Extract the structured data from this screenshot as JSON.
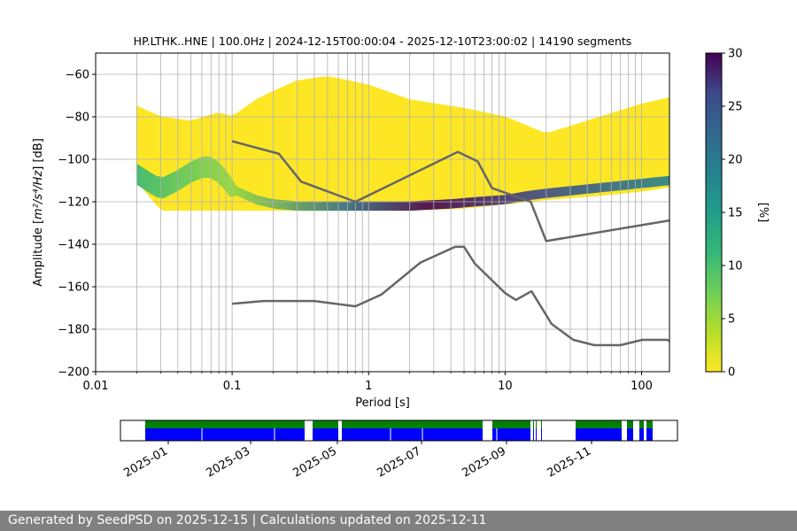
{
  "chart_data": {
    "type": "heatmap",
    "title": "HP.LTHK..HNE | 100.0Hz | 2024-12-15T00:00:04 - 2025-12-10T23:00:02 | 14190 segments",
    "xlabel": "Period [s]",
    "ylabel_prefix": "Amplitude [",
    "ylabel_math": "m²/s⁴/Hz",
    "ylabel_suffix": "] [dB]",
    "x_scale": "log",
    "xlim": [
      0.01,
      160
    ],
    "ylim": [
      -200,
      -50
    ],
    "grid": true,
    "x_ticks": [
      {
        "value": 0.01,
        "label": "0.01"
      },
      {
        "value": 0.1,
        "label": "0.1"
      },
      {
        "value": 1,
        "label": "1"
      },
      {
        "value": 10,
        "label": "10"
      },
      {
        "value": 100,
        "label": "100"
      }
    ],
    "y_ticks": [
      {
        "value": -60,
        "label": "−60"
      },
      {
        "value": -80,
        "label": "−80"
      },
      {
        "value": -100,
        "label": "−100"
      },
      {
        "value": -120,
        "label": "−120"
      },
      {
        "value": -140,
        "label": "−140"
      },
      {
        "value": -160,
        "label": "−160"
      },
      {
        "value": -180,
        "label": "−180"
      },
      {
        "value": -200,
        "label": "−200"
      }
    ],
    "colorbar": {
      "label": "[%]",
      "range": [
        0,
        30
      ],
      "colormap": "viridis_r",
      "ticks": [
        {
          "value": 0,
          "label": "0"
        },
        {
          "value": 5,
          "label": "5"
        },
        {
          "value": 10,
          "label": "10"
        },
        {
          "value": 15,
          "label": "15"
        },
        {
          "value": 20,
          "label": "20"
        },
        {
          "value": 25,
          "label": "25"
        },
        {
          "value": 30,
          "label": "30"
        }
      ]
    },
    "density_mode": {
      "periods": [
        0.02,
        0.025,
        0.03,
        0.04,
        0.05,
        0.065,
        0.08,
        0.1,
        0.15,
        0.2,
        0.3,
        0.5,
        1,
        2,
        4,
        6,
        10,
        15,
        20,
        40,
        80,
        160
      ],
      "amplitudes": [
        -107,
        -111,
        -114,
        -110,
        -106,
        -103,
        -106,
        -114,
        -119,
        -121,
        -122,
        -122,
        -122,
        -122,
        -121,
        -120,
        -119,
        -117,
        -116,
        -114,
        -112,
        -110
      ]
    },
    "density_extent": {
      "periods": [
        0.02,
        0.03,
        0.05,
        0.08,
        0.1,
        0.15,
        0.2,
        0.3,
        0.5,
        1,
        2,
        5,
        10,
        20,
        50,
        100,
        160
      ],
      "upper": [
        -75,
        -80,
        -82,
        -78,
        -80,
        -72,
        -68,
        -63,
        -61,
        -65,
        -72,
        -76,
        -80,
        -88,
        -80,
        -74,
        -71
      ],
      "lower": [
        -110,
        -124,
        -124,
        -124,
        -124,
        -124,
        -124,
        -124,
        -124,
        -124,
        -124,
        -123,
        -121,
        -119,
        -117,
        -115,
        -113
      ]
    },
    "series": [
      {
        "periods": [
          0.1,
          0.22,
          0.32,
          0.8,
          4.5,
          6.3,
          8.0,
          15.4,
          20.0,
          160
        ],
        "values": [
          -91.5,
          -97.4,
          -110.5,
          -120.0,
          -96.5,
          -101.0,
          -113.5,
          -120.0,
          -138.5,
          -128.8
        ]
      },
      {
        "periods": [
          0.1,
          0.17,
          0.4,
          0.8,
          1.24,
          2.4,
          4.3,
          5.0,
          6.0,
          10.0,
          12.0,
          15.6,
          21.9,
          31.6,
          45.0,
          70.0,
          101.0,
          154.0,
          160
        ],
        "values": [
          -168.0,
          -166.7,
          -166.7,
          -169.2,
          -163.7,
          -148.6,
          -141.2,
          -141.2,
          -149.1,
          -163.0,
          -166.2,
          -162.1,
          -177.5,
          -185.0,
          -187.5,
          -187.5,
          -185.0,
          -185.0,
          -185.5
        ]
      }
    ]
  },
  "availability": {
    "x_ticks": [
      "2025-01",
      "2025-03",
      "2025-05",
      "2025-07",
      "2025-09",
      "2025-11"
    ],
    "colors": {
      "upper": "#008000",
      "lower": "#0000ff"
    }
  },
  "footer_text": "Generated by SeedPSD on 2025-12-15 | Calculations updated on 2025-12-11"
}
